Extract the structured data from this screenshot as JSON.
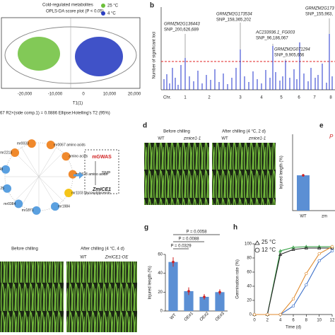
{
  "panel_a": {
    "title": "Cold-regulated metabolites",
    "subtitle": "OPLS-DA score plot (P < 0.05)",
    "legend": [
      "25 °C",
      "4 °C"
    ],
    "xticks": [
      "-20,000",
      "-10,000",
      "0",
      "10,000",
      "20,000"
    ],
    "xlabel": "T1(1)",
    "footer": "67   R2×(side comp.1) = 0.0886   Ellipse:Hotelling's T2 (95%)"
  },
  "panel_b": {
    "letter": "b",
    "ylabel": "Number of significant loci",
    "chr_label": "Chr.",
    "chromosomes": [
      "1",
      "2",
      "3",
      "4",
      "5",
      "6",
      "7",
      "8"
    ],
    "annotations": [
      {
        "gene": "GRMZM2G136443",
        "snp": "SNP_200,626,689"
      },
      {
        "gene": "GRMZM2G173534",
        "snp": "SNP_158,365,202"
      },
      {
        "gene": "AC233936.1_FG003",
        "snp": "SNP_96,186,067"
      },
      {
        "gene": "GRMZM2G071294",
        "snp": "SNP_9,905,656"
      },
      {
        "gene": "GRMZM2G173",
        "snp": "SNP_155,963,"
      }
    ]
  },
  "panel_c": {
    "nodes": [
      "mr2213",
      "mr0033",
      "mr0067 amino acids",
      "amino acids",
      "mr0628 amino acids",
      "mr1103 glycosylglycerols",
      "mr1984",
      "mr1871",
      "mr0384",
      "mr0125",
      "mr2048"
    ],
    "box": [
      "mGWAS",
      "SNP",
      "ZmICE1"
    ]
  },
  "panel_d": {
    "letter": "d",
    "before": "Before chilling",
    "after": "After chilling (4 °C, 2 d)",
    "labels": [
      "WT",
      "zmice1-1",
      "WT",
      "zmice1-1"
    ]
  },
  "panel_f": {
    "before": "Before chilling",
    "after": "After chilling (4 °C, 4 d)",
    "labels": [
      "WT",
      "ZmICE1-OE"
    ]
  },
  "chart_data": [
    {
      "type": "bar",
      "letter": "e",
      "ylabel": "Injured length (%)",
      "categories": [
        "WT",
        "zm"
      ],
      "values": [
        37,
        null
      ],
      "annotation": "P",
      "ylim": [
        0,
        80
      ],
      "color": "#5b8fd4"
    },
    {
      "type": "bar",
      "letter": "g",
      "ylabel": "Injured length (%)",
      "categories": [
        "WT",
        "OE#1",
        "OE#2",
        "OE#3"
      ],
      "values": [
        52,
        21,
        15,
        20
      ],
      "errors": [
        5,
        4,
        3,
        3
      ],
      "annotations": [
        "P = 0.0058",
        "P = 0.0088",
        "P = 0.0329"
      ],
      "ylim": [
        0,
        60
      ],
      "yticks": [
        0,
        20,
        40,
        60
      ],
      "color": "#5b8fd4"
    },
    {
      "type": "line",
      "letter": "h",
      "ylabel": "Germination rate (%)",
      "xlabel": "Time (d)",
      "legend": [
        "25 °C",
        "12 °C"
      ],
      "x": [
        0,
        2,
        4,
        6,
        8,
        10,
        12
      ],
      "xlim": [
        0,
        12
      ],
      "xticks": [
        0,
        2,
        4,
        6,
        8,
        10,
        12
      ],
      "ylim": [
        0,
        100
      ],
      "yticks": [
        0,
        20,
        40,
        60,
        80,
        100
      ],
      "series": [
        {
          "color": "#2e9e3e",
          "values": [
            0,
            0,
            90,
            95,
            96,
            96,
            96
          ]
        },
        {
          "color": "#222222",
          "values": [
            0,
            0,
            85,
            92,
            94,
            94,
            94
          ]
        },
        {
          "color": "#3b6fc9",
          "values": [
            0,
            0,
            0,
            12,
            42,
            76,
            90
          ]
        },
        {
          "color": "#e08a2c",
          "values": [
            0,
            0,
            0,
            22,
            58,
            86,
            96
          ]
        }
      ]
    }
  ]
}
